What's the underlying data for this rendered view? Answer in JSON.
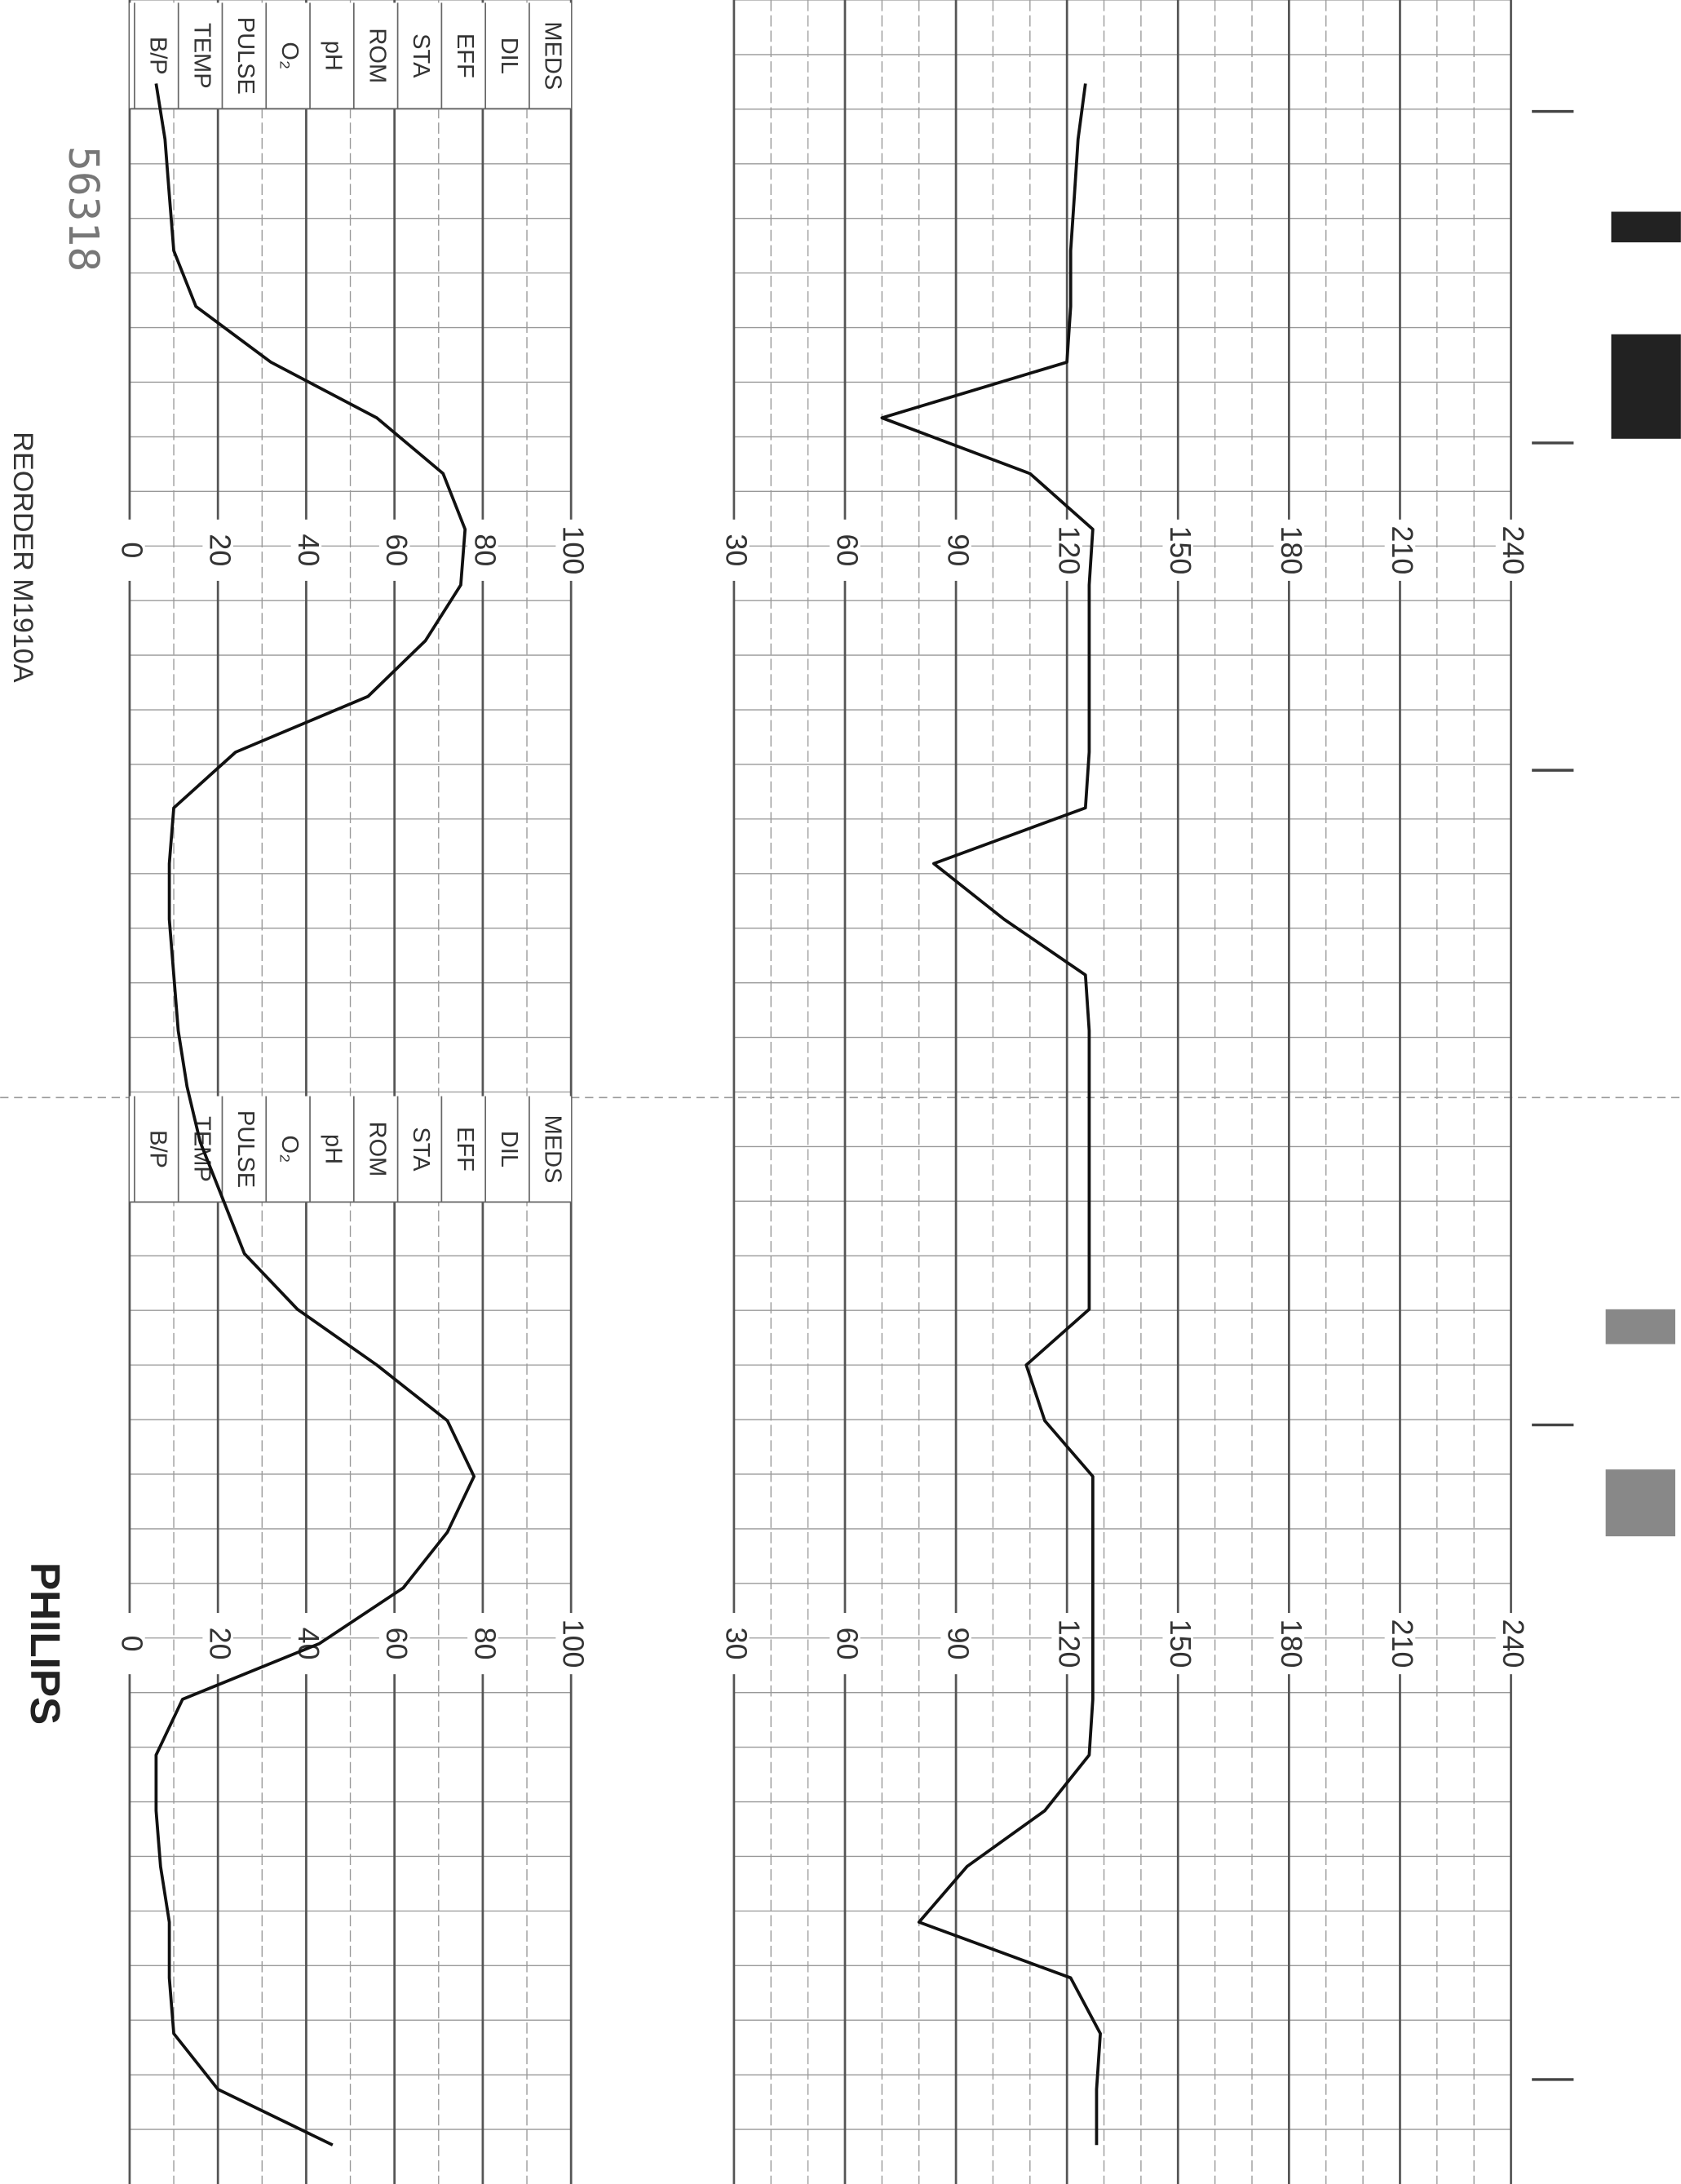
{
  "chart_data": [
    {
      "type": "line",
      "categories": [
        null,
        null,
        null,
        null,
        null,
        null,
        null,
        null,
        null,
        null,
        null,
        null,
        null,
        null,
        null,
        null,
        null,
        null,
        null,
        null,
        null,
        null,
        null,
        null,
        null,
        null,
        null,
        null,
        null,
        null,
        null,
        null,
        null,
        null,
        null,
        null,
        null,
        null,
        null
      ],
      "values": [
        null,
        125,
        123,
        122,
        121,
        121,
        120,
        70,
        110,
        127,
        126,
        126,
        126,
        126,
        125,
        84,
        103,
        125,
        126,
        126,
        126,
        126,
        126,
        126,
        109,
        114,
        127,
        127,
        127,
        127,
        127,
        126,
        114,
        93,
        80,
        121,
        129,
        128,
        128
      ],
      "color": "#111111",
      "ylim": [
        30,
        240
      ],
      "yticks": [
        30,
        60,
        90,
        120,
        150,
        180,
        210,
        240
      ],
      "grid": true
    },
    {
      "type": "line",
      "categories": [
        null,
        null,
        null,
        null,
        null,
        null,
        null,
        null,
        null,
        null,
        null,
        null,
        null,
        null,
        null,
        null,
        null,
        null,
        null,
        null,
        null,
        null,
        null,
        null,
        null,
        null,
        null,
        null,
        null,
        null,
        null,
        null,
        null,
        null,
        null,
        null,
        null,
        null,
        null
      ],
      "values": [
        null,
        6,
        8,
        9,
        10,
        15,
        32,
        56,
        71,
        76,
        75,
        67,
        54,
        24,
        10,
        9,
        9,
        10,
        11,
        13,
        16,
        21,
        26,
        38,
        56,
        72,
        78,
        72,
        62,
        43,
        12,
        6,
        6,
        7,
        9,
        9,
        10,
        20,
        46
      ],
      "color": "#111111",
      "ylim": [
        0,
        100
      ],
      "yticks": [
        0,
        20,
        40,
        60,
        80,
        100
      ],
      "grid": true,
      "row_labels": [
        "MEDS",
        "DIL",
        "EFF",
        "STA",
        "ROM",
        "pH",
        "O₂",
        "PULSE",
        "TEMP",
        "B/P"
      ],
      "annotations": [
        "REORDER M1910A",
        "PHILIPS",
        "56318"
      ]
    }
  ]
}
